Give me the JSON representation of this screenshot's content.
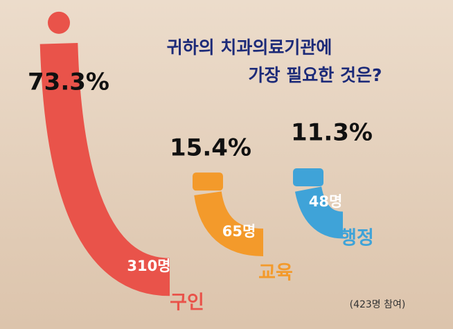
{
  "chart_data": {
    "type": "swoosh",
    "title": [
      "귀하의 치과의료기관에",
      "가장 필요한 것은?"
    ],
    "categories": [
      "구인",
      "교육",
      "행정"
    ],
    "values": [
      73.3,
      15.4,
      11.3
    ],
    "value_labels": [
      "73.3%",
      "15.4%",
      "11.3%"
    ],
    "counts": [
      310,
      65,
      48
    ],
    "count_labels": [
      "310명",
      "65명",
      "48명"
    ],
    "colors": [
      "#e9534a",
      "#f39a2b",
      "#3fa3d8"
    ],
    "note": "(423명 참여)"
  }
}
